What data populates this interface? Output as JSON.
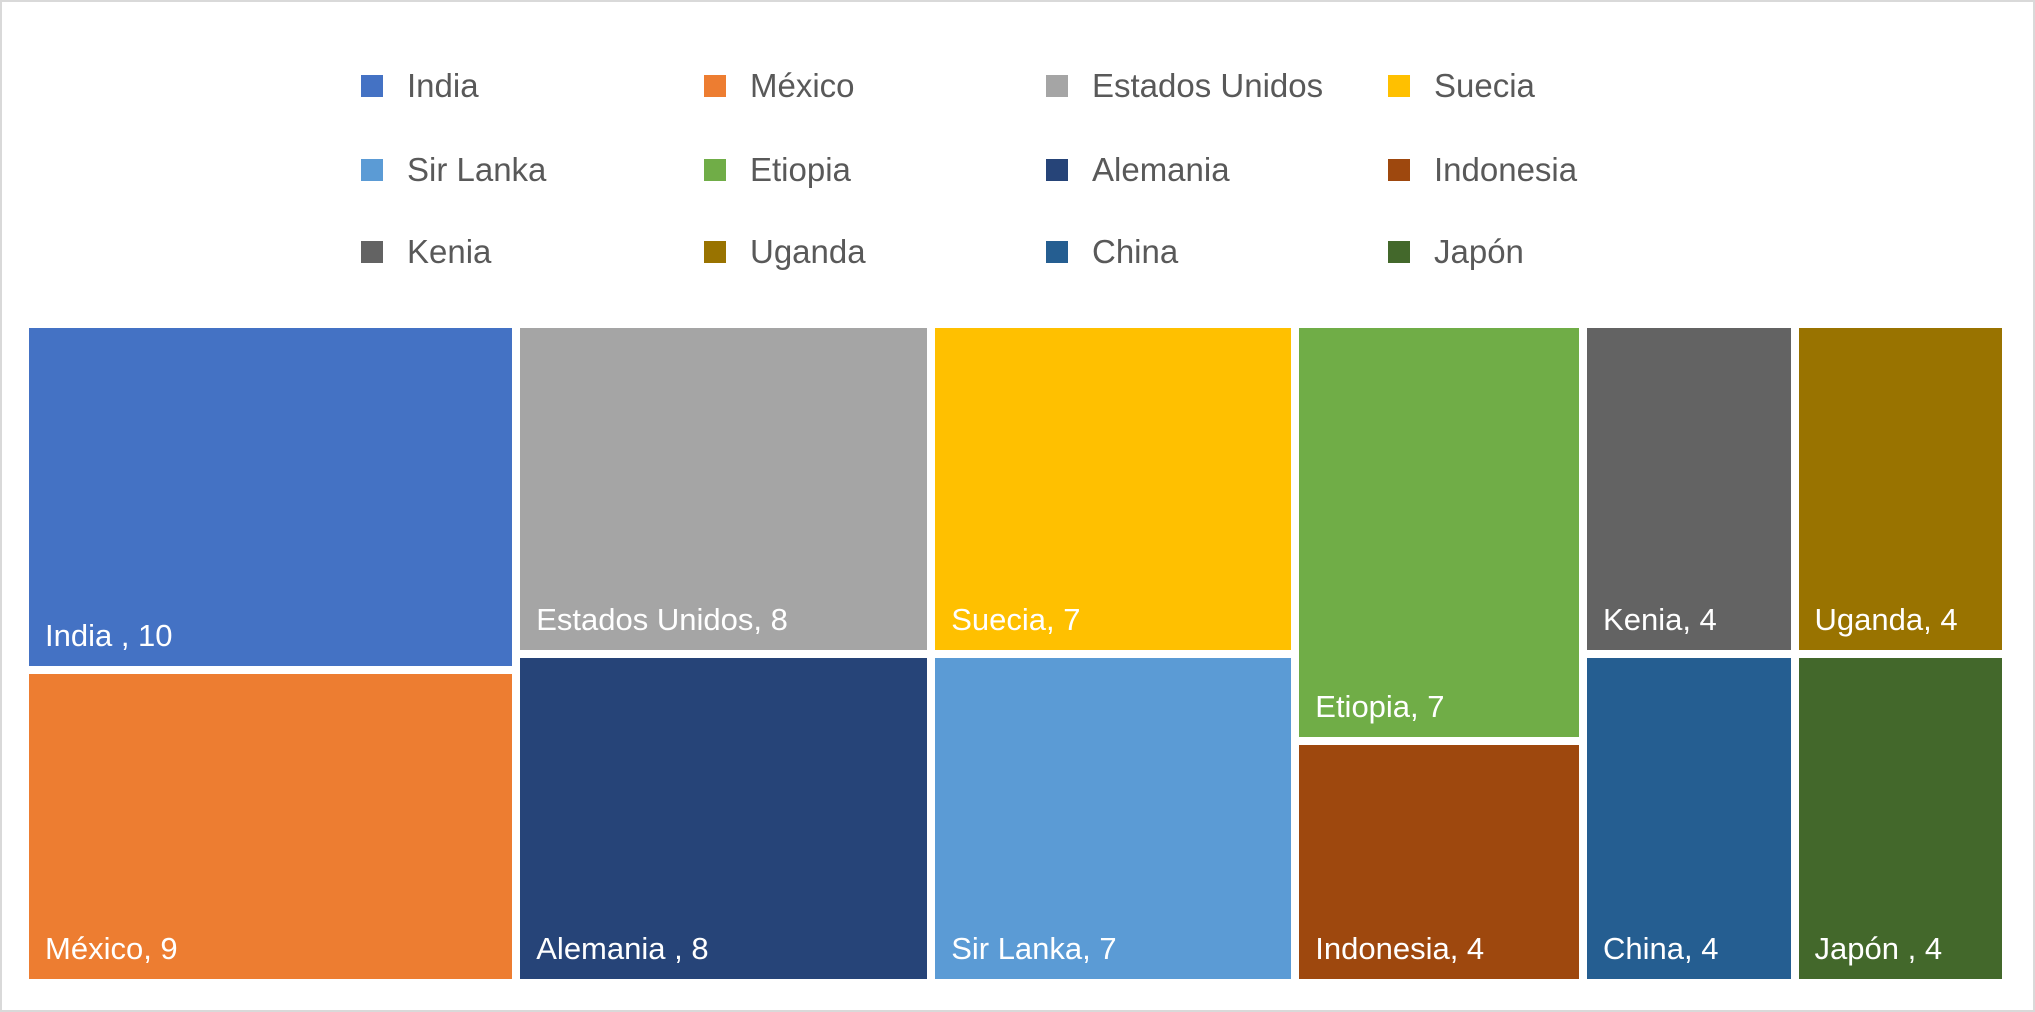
{
  "chart_data": {
    "type": "treemap",
    "title": "",
    "legend_position": "top",
    "items": [
      {
        "name": "India",
        "value": 10,
        "label": "India , 10",
        "color": "#4472C4"
      },
      {
        "name": "México",
        "value": 9,
        "label": "México, 9",
        "color": "#ED7D31"
      },
      {
        "name": "Estados Unidos",
        "value": 8,
        "label": "Estados Unidos, 8",
        "color": "#A5A5A5"
      },
      {
        "name": "Alemania",
        "value": 8,
        "label": "Alemania , 8",
        "color": "#264478"
      },
      {
        "name": "Suecia",
        "value": 7,
        "label": "Suecia, 7",
        "color": "#FFC000"
      },
      {
        "name": "Sir Lanka",
        "value": 7,
        "label": "Sir Lanka, 7",
        "color": "#5B9BD5"
      },
      {
        "name": "Etiopia",
        "value": 7,
        "label": "Etiopia, 7",
        "color": "#70AD47"
      },
      {
        "name": "Indonesia",
        "value": 4,
        "label": "Indonesia, 4",
        "color": "#9E480E"
      },
      {
        "name": "Kenia",
        "value": 4,
        "label": "Kenia, 4",
        "color": "#636363"
      },
      {
        "name": "China",
        "value": 4,
        "label": "China, 4",
        "color": "#255E91"
      },
      {
        "name": "Uganda",
        "value": 4,
        "label": "Uganda, 4",
        "color": "#997300"
      },
      {
        "name": "Japón",
        "value": 4,
        "label": "Japón , 4",
        "color": "#43682B"
      }
    ],
    "legend_order": [
      "India",
      "México",
      "Estados Unidos",
      "Suecia",
      "Sir Lanka",
      "Etiopia",
      "Alemania",
      "Indonesia",
      "Kenia",
      "Uganda",
      "China",
      "Japón"
    ]
  }
}
